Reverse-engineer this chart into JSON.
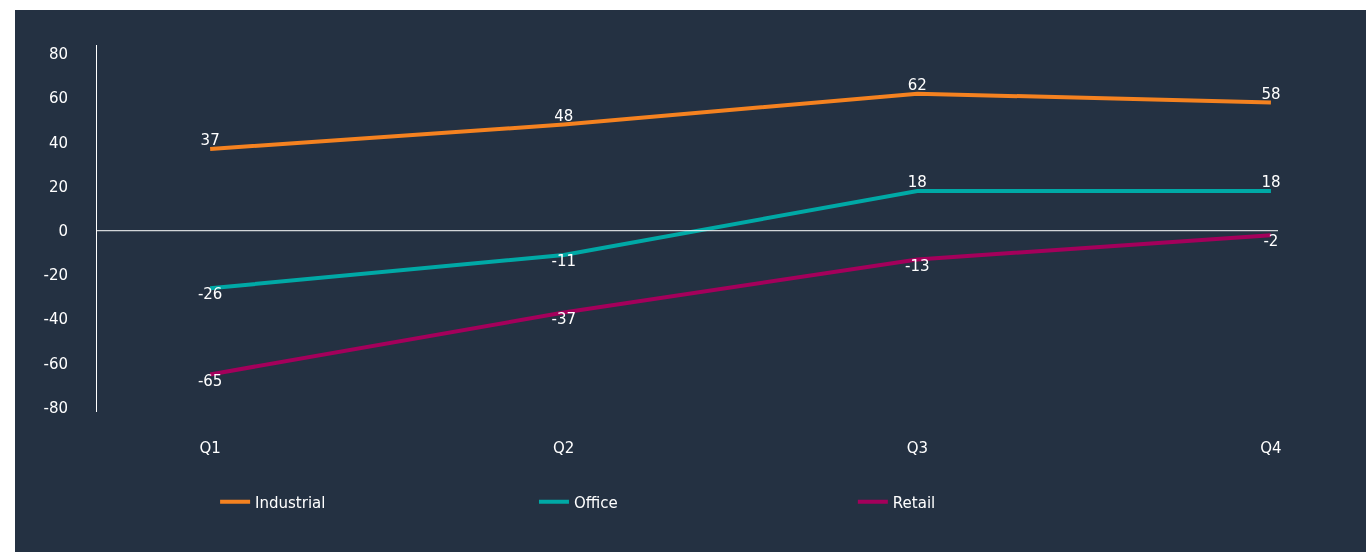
{
  "chart_data": {
    "type": "line",
    "categories": [
      "Q1",
      "Q2",
      "Q3",
      "Q4"
    ],
    "series": [
      {
        "name": "Industrial",
        "color": "#f58220",
        "values": [
          37,
          48,
          62,
          58
        ]
      },
      {
        "name": "Office",
        "color": "#00a9a6",
        "values": [
          -26,
          -11,
          18,
          18
        ]
      },
      {
        "name": "Retail",
        "color": "#a4005b",
        "values": [
          -65,
          -37,
          -13,
          -2
        ]
      }
    ],
    "ylim": [
      -82,
      84
    ],
    "yticks": [
      -80,
      -60,
      -40,
      -20,
      0,
      20,
      40,
      60,
      80
    ],
    "ref_lines": [
      {
        "axis": "y",
        "value": 0,
        "color": "#ffffff"
      }
    ],
    "data_labels": true,
    "legend": "bottom",
    "marker": "none",
    "line_style": "solid"
  }
}
